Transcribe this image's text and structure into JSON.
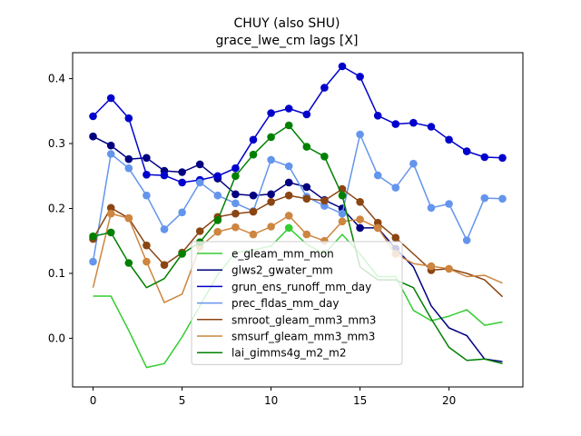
{
  "chart_data": {
    "type": "line",
    "title": "CHUY (also SHU)",
    "subtitle": "grace_lwe_cm lags [X]",
    "xlabel": "",
    "ylabel": "",
    "xlim": [
      -1.15,
      24.15
    ],
    "ylim": [
      -0.075,
      0.44
    ],
    "xticks": [
      0,
      5,
      10,
      15,
      20
    ],
    "yticks": [
      0.0,
      0.1,
      0.2,
      0.3,
      0.4
    ],
    "ytick_labels": [
      "0.0",
      "0.1",
      "0.2",
      "0.3",
      "0.4"
    ],
    "grid": false,
    "legend_position": "lower-center",
    "x": [
      0,
      1,
      2,
      3,
      4,
      5,
      6,
      7,
      8,
      9,
      10,
      11,
      12,
      13,
      14,
      15,
      16,
      17,
      18,
      19,
      20,
      21,
      22,
      23
    ],
    "series": [
      {
        "name": "e_gleam_mm_mon",
        "color": "#32cd32",
        "values": [
          0.065,
          0.065,
          0.012,
          -0.045,
          -0.039,
          0.002,
          0.05,
          0.098,
          0.132,
          0.136,
          0.142,
          0.17,
          0.145,
          0.13,
          0.16,
          0.13,
          0.095,
          0.095,
          0.043,
          0.027,
          0.034,
          0.044,
          0.02,
          0.025
        ],
        "markers": [
          false,
          false,
          false,
          false,
          false,
          false,
          false,
          false,
          false,
          false,
          false,
          true,
          false,
          false,
          false,
          false,
          false,
          false,
          false,
          false,
          false,
          false,
          false,
          false
        ]
      },
      {
        "name": "glws2_gwater_mm",
        "color": "#000080",
        "values": [
          0.311,
          0.297,
          0.276,
          0.278,
          0.258,
          0.256,
          0.268,
          0.246,
          0.222,
          0.22,
          0.222,
          0.24,
          0.233,
          0.213,
          0.2,
          0.17,
          0.17,
          0.138,
          0.11,
          0.05,
          0.016,
          0.004,
          -0.032,
          -0.036
        ],
        "markers": [
          true,
          true,
          true,
          true,
          true,
          true,
          true,
          true,
          true,
          true,
          true,
          true,
          true,
          true,
          true,
          true,
          true,
          true,
          false,
          false,
          false,
          false,
          false,
          false
        ]
      },
      {
        "name": "grun_ens_runoff_mm_day",
        "color": "#0000cd",
        "values": [
          0.342,
          0.37,
          0.339,
          0.252,
          0.251,
          0.24,
          0.244,
          0.25,
          0.262,
          0.306,
          0.347,
          0.354,
          0.345,
          0.386,
          0.419,
          0.403,
          0.343,
          0.33,
          0.332,
          0.326,
          0.306,
          0.288,
          0.279,
          0.278
        ],
        "markers": [
          true,
          true,
          true,
          true,
          true,
          true,
          true,
          true,
          true,
          true,
          true,
          true,
          true,
          true,
          true,
          true,
          true,
          true,
          true,
          true,
          true,
          true,
          true,
          true
        ]
      },
      {
        "name": "prec_fldas_mm_day",
        "color": "#6495ed",
        "values": [
          0.118,
          0.284,
          0.262,
          0.22,
          0.168,
          0.194,
          0.24,
          0.22,
          0.208,
          0.196,
          0.275,
          0.265,
          0.218,
          0.204,
          0.192,
          0.314,
          0.251,
          0.232,
          0.269,
          0.201,
          0.207,
          0.151,
          0.216,
          0.215
        ],
        "markers": [
          true,
          true,
          true,
          true,
          true,
          true,
          true,
          true,
          true,
          true,
          true,
          true,
          true,
          true,
          true,
          true,
          true,
          true,
          true,
          true,
          true,
          true,
          true,
          true
        ]
      },
      {
        "name": "smroot_gleam_mm3_mm3",
        "color": "#8b4513",
        "values": [
          0.153,
          0.201,
          0.185,
          0.143,
          0.113,
          0.132,
          0.165,
          0.187,
          0.192,
          0.195,
          0.21,
          0.22,
          0.215,
          0.212,
          0.23,
          0.21,
          0.178,
          0.155,
          0.13,
          0.105,
          0.107,
          0.1,
          0.09,
          0.064
        ],
        "markers": [
          true,
          true,
          true,
          true,
          true,
          true,
          true,
          true,
          true,
          true,
          true,
          true,
          true,
          true,
          true,
          true,
          true,
          true,
          false,
          true,
          false,
          false,
          false,
          false
        ]
      },
      {
        "name": "smsurf_gleam_mm3_mm3",
        "color": "#cd853f",
        "values": [
          0.078,
          0.192,
          0.185,
          0.118,
          0.055,
          0.068,
          0.141,
          0.164,
          0.171,
          0.16,
          0.172,
          0.189,
          0.16,
          0.15,
          0.18,
          0.183,
          0.17,
          0.13,
          0.115,
          0.111,
          0.107,
          0.095,
          0.097,
          0.085
        ],
        "markers": [
          false,
          true,
          true,
          true,
          false,
          false,
          true,
          true,
          true,
          true,
          true,
          true,
          true,
          true,
          true,
          true,
          true,
          true,
          false,
          true,
          true,
          false,
          false,
          false
        ]
      },
      {
        "name": "lai_gimms4g_m2_m2",
        "color": "#008000",
        "values": [
          0.157,
          0.163,
          0.116,
          0.078,
          0.092,
          0.13,
          0.148,
          0.182,
          0.25,
          0.283,
          0.31,
          0.328,
          0.295,
          0.28,
          0.22,
          0.11,
          0.09,
          0.09,
          0.078,
          0.03,
          -0.014,
          -0.034,
          -0.032,
          -0.039
        ],
        "markers": [
          true,
          true,
          true,
          false,
          false,
          true,
          true,
          true,
          true,
          true,
          true,
          true,
          true,
          true,
          true,
          false,
          false,
          false,
          false,
          false,
          false,
          false,
          false,
          false
        ]
      }
    ]
  }
}
